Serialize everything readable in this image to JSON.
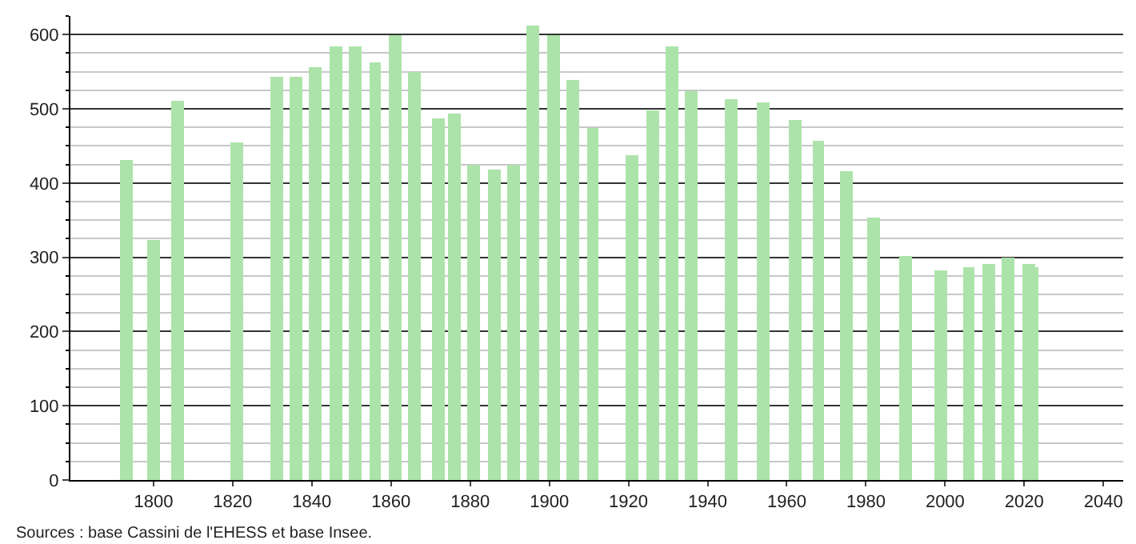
{
  "chart_data": {
    "type": "bar",
    "x": [
      1793,
      1800,
      1806,
      1821,
      1831,
      1836,
      1841,
      1846,
      1851,
      1856,
      1861,
      1866,
      1872,
      1876,
      1881,
      1886,
      1891,
      1896,
      1901,
      1906,
      1911,
      1921,
      1926,
      1931,
      1936,
      1946,
      1954,
      1962,
      1968,
      1975,
      1982,
      1990,
      1999,
      2006,
      2011,
      2016,
      2021,
      2022
    ],
    "series": [
      {
        "color": "#ace3aa",
        "values": [
          432,
          323,
          510,
          454,
          544,
          544,
          555,
          583,
          583,
          563,
          600,
          550,
          488,
          493,
          425,
          419,
          425,
          612,
          600,
          538,
          475,
          438,
          497,
          584,
          524,
          512,
          508,
          486,
          456,
          417,
          354,
          302,
          282,
          286,
          292,
          300,
          292,
          286
        ]
      }
    ],
    "xlim": [
      1779,
      2045
    ],
    "xticks": [
      1800,
      1820,
      1840,
      1860,
      1880,
      1900,
      1920,
      1940,
      1960,
      1980,
      2000,
      2020,
      2040
    ],
    "ylim": [
      0,
      625
    ],
    "yticks": [
      0,
      100,
      200,
      300,
      400,
      500,
      600
    ],
    "grid": "y",
    "annotations": [
      "Sources : base Cassini de l'EHESS et base Insee."
    ]
  }
}
